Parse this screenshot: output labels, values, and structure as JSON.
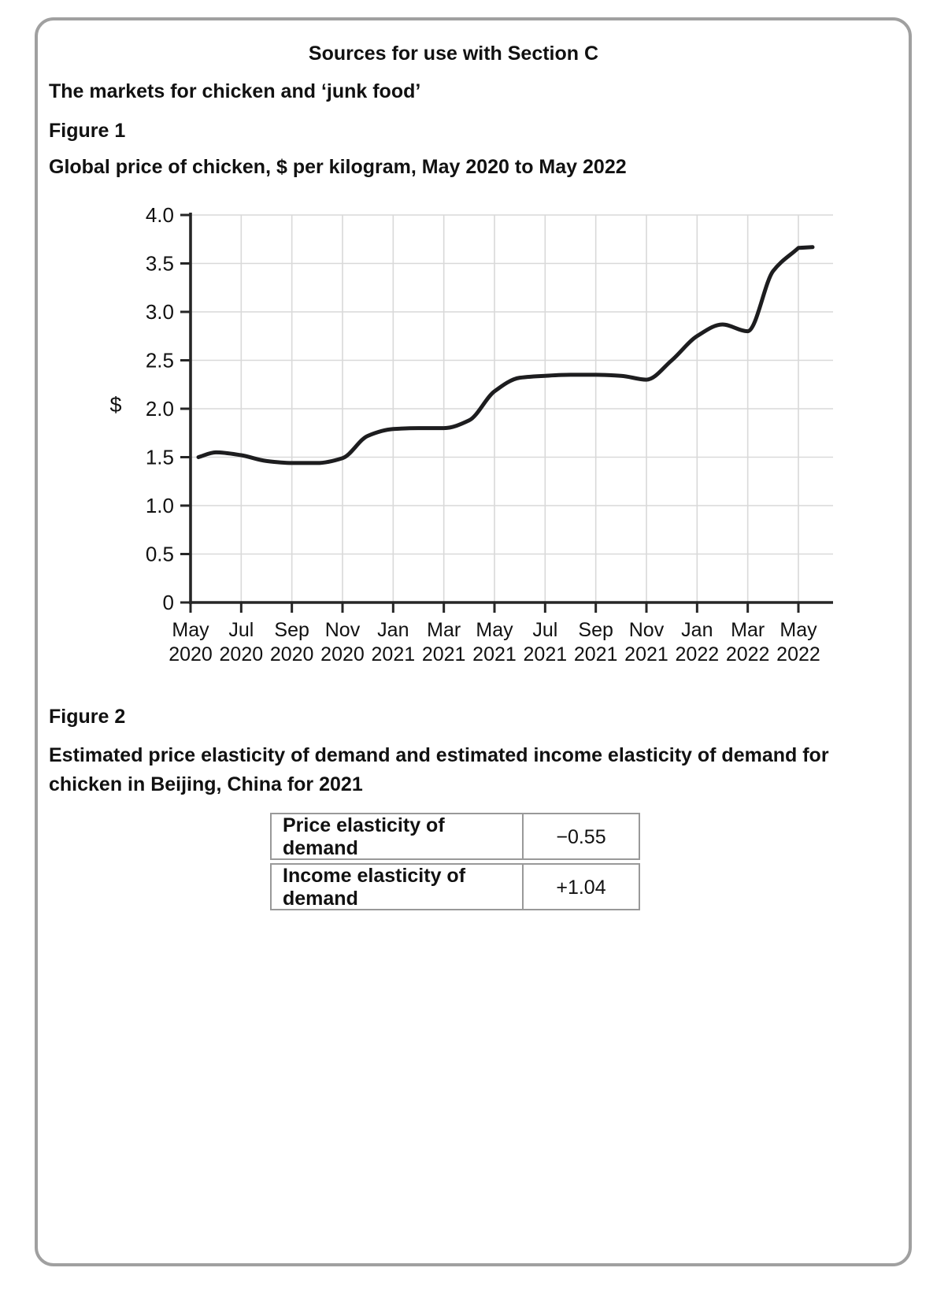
{
  "page": {
    "header_title": "Sources for use with Section C",
    "subtitle": "The markets for chicken and ‘junk food’",
    "figure1": {
      "label": "Figure 1",
      "caption": "Global price of chicken, $ per kilogram, May 2020 to May 2022"
    },
    "figure2": {
      "label": "Figure 2",
      "caption": "Estimated price elasticity of demand and estimated income elasticity of demand for chicken in Beijing, China for 2021"
    }
  },
  "chart_data": {
    "type": "line",
    "title": "Global price of chicken, $ per kilogram, May 2020 to May 2022",
    "xlabel": "",
    "ylabel": "$",
    "ylim": [
      0,
      4.0
    ],
    "ytick_interval": 0.5,
    "grid": true,
    "legend": "none",
    "x": [
      "May 2020",
      "Jun 2020",
      "Jul 2020",
      "Aug 2020",
      "Sep 2020",
      "Oct 2020",
      "Nov 2020",
      "Dec 2020",
      "Jan 2021",
      "Feb 2021",
      "Mar 2021",
      "Apr 2021",
      "May 2021",
      "Jun 2021",
      "Jul 2021",
      "Aug 2021",
      "Sep 2021",
      "Oct 2021",
      "Nov 2021",
      "Dec 2021",
      "Jan 2022",
      "Feb 2022",
      "Mar 2022",
      "Apr 2022",
      "May 2022"
    ],
    "values": [
      1.5,
      1.55,
      1.52,
      1.46,
      1.44,
      1.44,
      1.49,
      1.72,
      1.79,
      1.8,
      1.8,
      1.88,
      2.18,
      2.32,
      2.34,
      2.35,
      2.35,
      2.34,
      2.3,
      2.5,
      2.75,
      2.87,
      2.8,
      3.42,
      3.66
    ],
    "ytick_labels": [
      "0",
      "0.5",
      "1.0",
      "1.5",
      "2.0",
      "2.5",
      "3.0",
      "3.5",
      "4.0"
    ],
    "xtick_labels": [
      {
        "month": "May",
        "year": "2020"
      },
      {
        "month": "Jul",
        "year": "2020"
      },
      {
        "month": "Sep",
        "year": "2020"
      },
      {
        "month": "Nov",
        "year": "2020"
      },
      {
        "month": "Jan",
        "year": "2021"
      },
      {
        "month": "Mar",
        "year": "2021"
      },
      {
        "month": "May",
        "year": "2021"
      },
      {
        "month": "Jul",
        "year": "2021"
      },
      {
        "month": "Sep",
        "year": "2021"
      },
      {
        "month": "Nov",
        "year": "2021"
      },
      {
        "month": "Jan",
        "year": "2022"
      },
      {
        "month": "Mar",
        "year": "2022"
      },
      {
        "month": "May",
        "year": "2022"
      }
    ]
  },
  "figure2_table": {
    "rows": [
      {
        "label": "Price elasticity of demand",
        "value": "−0.55"
      },
      {
        "label": "Income elasticity of demand",
        "value": "+1.04"
      }
    ]
  },
  "colors": {
    "page_border": "#a0a0a0",
    "grid": "#d9d9d9",
    "axis": "#262626",
    "line": "#1d1d1f",
    "table_border": "#999999",
    "text": "#111111"
  }
}
